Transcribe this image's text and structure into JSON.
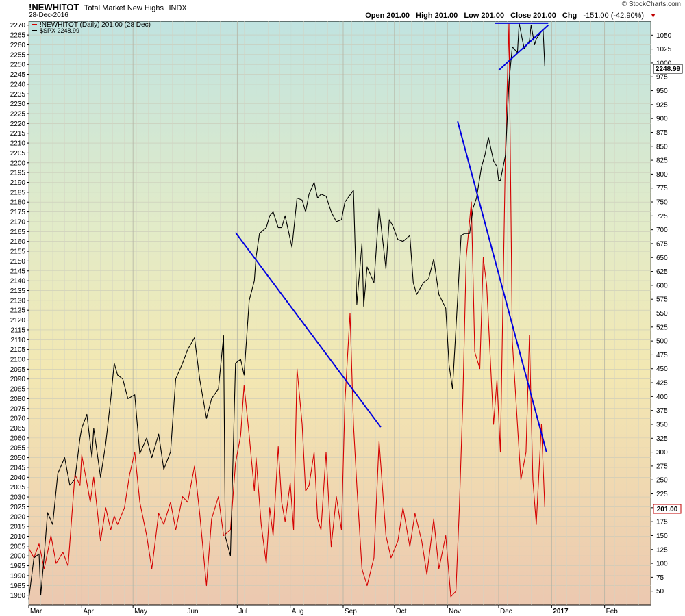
{
  "header": {
    "symbol": "!NEWHITOT",
    "description": "Total Market New Highs",
    "exchange": "INDX",
    "date": "28-Dec-2016",
    "watermark": "© StockCharts.com",
    "open_label": "Open",
    "open_value": "201.00",
    "high_label": "High",
    "high_value": "201.00",
    "low_label": "Low",
    "low_value": "201.00",
    "close_label": "Close",
    "close_value": "201.00",
    "chg_label": "Chg",
    "chg_value": "-151.00 (-42.90%)"
  },
  "legend": {
    "primary": "!NEWHITOT (Daily) 201.00 (28 Dec)",
    "secondary": "$SPX 2248.99"
  },
  "badges": {
    "spx_last": "2248.99",
    "newhi_last": "201.00"
  },
  "colors": {
    "newhi": "#d40000",
    "spx": "#000000",
    "trendline": "#0000e0",
    "badge": "#c00000"
  },
  "chart_data": {
    "type": "line",
    "x_labels": [
      "Mar",
      "Apr",
      "May",
      "Jun",
      "Jul",
      "Aug",
      "Sep",
      "Oct",
      "Nov",
      "Dec",
      "2017",
      "Feb"
    ],
    "x_range": [
      "2016-03-01",
      "2017-02-28"
    ],
    "left_axis": {
      "range": [
        1975,
        2272
      ],
      "ticks": [
        2270,
        2265,
        2260,
        2255,
        2250,
        2245,
        2240,
        2235,
        2230,
        2225,
        2220,
        2215,
        2210,
        2205,
        2200,
        2195,
        2190,
        2185,
        2180,
        2175,
        2170,
        2165,
        2160,
        2155,
        2150,
        2145,
        2140,
        2135,
        2130,
        2125,
        2120,
        2115,
        2110,
        2105,
        2100,
        2095,
        2090,
        2085,
        2080,
        2075,
        2070,
        2065,
        2060,
        2055,
        2050,
        2045,
        2040,
        2035,
        2030,
        2025,
        2020,
        2015,
        2010,
        2005,
        2000,
        1995,
        1990,
        1985,
        1980
      ]
    },
    "right_axis": {
      "range": [
        25,
        1075
      ],
      "ticks": [
        1050,
        1025,
        1000,
        975,
        950,
        925,
        900,
        875,
        850,
        825,
        800,
        775,
        750,
        725,
        700,
        675,
        650,
        625,
        600,
        575,
        550,
        525,
        500,
        475,
        450,
        425,
        400,
        375,
        350,
        325,
        300,
        275,
        250,
        225,
        200,
        175,
        150,
        125,
        100,
        75,
        50
      ]
    },
    "series": [
      {
        "name": "!NEWHITOT (Daily) 201.00 (28 Dec)",
        "axis": "right",
        "color": "#d40000",
        "points": [
          [
            "2016-03-01",
            127
          ],
          [
            "2016-03-04",
            110
          ],
          [
            "2016-03-07",
            135
          ],
          [
            "2016-03-10",
            90
          ],
          [
            "2016-03-14",
            150
          ],
          [
            "2016-03-17",
            100
          ],
          [
            "2016-03-21",
            120
          ],
          [
            "2016-03-24",
            95
          ],
          [
            "2016-03-28",
            260
          ],
          [
            "2016-03-31",
            240
          ],
          [
            "2016-04-01",
            295
          ],
          [
            "2016-04-04",
            245
          ],
          [
            "2016-04-06",
            210
          ],
          [
            "2016-04-08",
            255
          ],
          [
            "2016-04-12",
            140
          ],
          [
            "2016-04-15",
            200
          ],
          [
            "2016-04-18",
            160
          ],
          [
            "2016-04-20",
            185
          ],
          [
            "2016-04-22",
            170
          ],
          [
            "2016-04-26",
            200
          ],
          [
            "2016-04-29",
            260
          ],
          [
            "2016-05-02",
            300
          ],
          [
            "2016-05-05",
            210
          ],
          [
            "2016-05-09",
            150
          ],
          [
            "2016-05-12",
            90
          ],
          [
            "2016-05-16",
            190
          ],
          [
            "2016-05-19",
            170
          ],
          [
            "2016-05-23",
            210
          ],
          [
            "2016-05-26",
            160
          ],
          [
            "2016-05-30",
            220
          ],
          [
            "2016-06-02",
            210
          ],
          [
            "2016-06-06",
            275
          ],
          [
            "2016-06-09",
            190
          ],
          [
            "2016-06-13",
            60
          ],
          [
            "2016-06-16",
            180
          ],
          [
            "2016-06-20",
            220
          ],
          [
            "2016-06-23",
            150
          ],
          [
            "2016-06-27",
            160
          ],
          [
            "2016-06-30",
            280
          ],
          [
            "2016-07-03",
            330
          ],
          [
            "2016-07-05",
            420
          ],
          [
            "2016-07-08",
            330
          ],
          [
            "2016-07-11",
            230
          ],
          [
            "2016-07-12",
            290
          ],
          [
            "2016-07-15",
            170
          ],
          [
            "2016-07-18",
            100
          ],
          [
            "2016-07-20",
            200
          ],
          [
            "2016-07-22",
            150
          ],
          [
            "2016-07-25",
            310
          ],
          [
            "2016-07-27",
            210
          ],
          [
            "2016-07-29",
            175
          ],
          [
            "2016-08-01",
            245
          ],
          [
            "2016-08-03",
            160
          ],
          [
            "2016-08-05",
            450
          ],
          [
            "2016-08-08",
            350
          ],
          [
            "2016-08-10",
            230
          ],
          [
            "2016-08-12",
            240
          ],
          [
            "2016-08-15",
            300
          ],
          [
            "2016-08-17",
            180
          ],
          [
            "2016-08-19",
            160
          ],
          [
            "2016-08-22",
            300
          ],
          [
            "2016-08-25",
            130
          ],
          [
            "2016-08-28",
            220
          ],
          [
            "2016-08-31",
            160
          ],
          [
            "2016-09-02",
            390
          ],
          [
            "2016-09-05",
            550
          ],
          [
            "2016-09-07",
            350
          ],
          [
            "2016-09-09",
            240
          ],
          [
            "2016-09-12",
            90
          ],
          [
            "2016-09-15",
            60
          ],
          [
            "2016-09-19",
            110
          ],
          [
            "2016-09-22",
            320
          ],
          [
            "2016-09-26",
            150
          ],
          [
            "2016-09-29",
            110
          ],
          [
            "2016-10-03",
            140
          ],
          [
            "2016-10-06",
            200
          ],
          [
            "2016-10-10",
            130
          ],
          [
            "2016-10-13",
            190
          ],
          [
            "2016-10-17",
            140
          ],
          [
            "2016-10-20",
            80
          ],
          [
            "2016-10-24",
            180
          ],
          [
            "2016-10-27",
            90
          ],
          [
            "2016-10-31",
            150
          ],
          [
            "2016-11-03",
            40
          ],
          [
            "2016-11-06",
            50
          ],
          [
            "2016-11-08",
            200
          ],
          [
            "2016-11-10",
            390
          ],
          [
            "2016-11-12",
            650
          ],
          [
            "2016-11-15",
            750
          ],
          [
            "2016-11-17",
            480
          ],
          [
            "2016-11-20",
            450
          ],
          [
            "2016-11-22",
            650
          ],
          [
            "2016-11-24",
            600
          ],
          [
            "2016-11-28",
            350
          ],
          [
            "2016-11-30",
            430
          ],
          [
            "2016-12-02",
            300
          ],
          [
            "2016-12-05",
            850
          ],
          [
            "2016-12-07",
            1070
          ],
          [
            "2016-12-09",
            500
          ],
          [
            "2016-12-12",
            350
          ],
          [
            "2016-12-14",
            250
          ],
          [
            "2016-12-17",
            300
          ],
          [
            "2016-12-19",
            510
          ],
          [
            "2016-12-21",
            250
          ],
          [
            "2016-12-23",
            170
          ],
          [
            "2016-12-26",
            350
          ],
          [
            "2016-12-28",
            201
          ]
        ]
      },
      {
        "name": "$SPX 2248.99",
        "axis": "left",
        "color": "#000000",
        "points": [
          [
            "2016-03-01",
            1978
          ],
          [
            "2016-03-04",
            1999
          ],
          [
            "2016-03-07",
            2001
          ],
          [
            "2016-03-08",
            1980
          ],
          [
            "2016-03-10",
            2000
          ],
          [
            "2016-03-12",
            2022
          ],
          [
            "2016-03-15",
            2016
          ],
          [
            "2016-03-18",
            2042
          ],
          [
            "2016-03-22",
            2050
          ],
          [
            "2016-03-25",
            2036
          ],
          [
            "2016-03-28",
            2039
          ],
          [
            "2016-03-31",
            2060
          ],
          [
            "2016-04-01",
            2065
          ],
          [
            "2016-04-04",
            2072
          ],
          [
            "2016-04-07",
            2050
          ],
          [
            "2016-04-08",
            2065
          ],
          [
            "2016-04-12",
            2040
          ],
          [
            "2016-04-15",
            2057
          ],
          [
            "2016-04-18",
            2080
          ],
          [
            "2016-04-20",
            2098
          ],
          [
            "2016-04-22",
            2092
          ],
          [
            "2016-04-25",
            2090
          ],
          [
            "2016-04-28",
            2080
          ],
          [
            "2016-05-02",
            2082
          ],
          [
            "2016-05-05",
            2052
          ],
          [
            "2016-05-09",
            2060
          ],
          [
            "2016-05-12",
            2050
          ],
          [
            "2016-05-16",
            2062
          ],
          [
            "2016-05-19",
            2044
          ],
          [
            "2016-05-23",
            2053
          ],
          [
            "2016-05-26",
            2090
          ],
          [
            "2016-05-30",
            2098
          ],
          [
            "2016-06-02",
            2105
          ],
          [
            "2016-06-06",
            2111
          ],
          [
            "2016-06-09",
            2090
          ],
          [
            "2016-06-13",
            2070
          ],
          [
            "2016-06-16",
            2080
          ],
          [
            "2016-06-20",
            2085
          ],
          [
            "2016-06-23",
            2112
          ],
          [
            "2016-06-24",
            2010
          ],
          [
            "2016-06-27",
            2000
          ],
          [
            "2016-06-30",
            2098
          ],
          [
            "2016-07-03",
            2100
          ],
          [
            "2016-07-05",
            2092
          ],
          [
            "2016-07-08",
            2130
          ],
          [
            "2016-07-11",
            2140
          ],
          [
            "2016-07-12",
            2152
          ],
          [
            "2016-07-14",
            2164
          ],
          [
            "2016-07-18",
            2167
          ],
          [
            "2016-07-20",
            2173
          ],
          [
            "2016-07-22",
            2175
          ],
          [
            "2016-07-25",
            2167
          ],
          [
            "2016-07-27",
            2167
          ],
          [
            "2016-07-29",
            2173
          ],
          [
            "2016-08-02",
            2157
          ],
          [
            "2016-08-05",
            2182
          ],
          [
            "2016-08-08",
            2181
          ],
          [
            "2016-08-10",
            2175
          ],
          [
            "2016-08-12",
            2184
          ],
          [
            "2016-08-15",
            2190
          ],
          [
            "2016-08-17",
            2182
          ],
          [
            "2016-08-19",
            2184
          ],
          [
            "2016-08-22",
            2183
          ],
          [
            "2016-08-25",
            2175
          ],
          [
            "2016-08-28",
            2170
          ],
          [
            "2016-08-31",
            2171
          ],
          [
            "2016-09-02",
            2180
          ],
          [
            "2016-09-07",
            2186
          ],
          [
            "2016-09-09",
            2128
          ],
          [
            "2016-09-12",
            2159
          ],
          [
            "2016-09-13",
            2127
          ],
          [
            "2016-09-15",
            2147
          ],
          [
            "2016-09-19",
            2139
          ],
          [
            "2016-09-22",
            2177
          ],
          [
            "2016-09-26",
            2146
          ],
          [
            "2016-09-28",
            2171
          ],
          [
            "2016-09-30",
            2168
          ],
          [
            "2016-10-03",
            2161
          ],
          [
            "2016-10-06",
            2160
          ],
          [
            "2016-10-10",
            2163
          ],
          [
            "2016-10-12",
            2139
          ],
          [
            "2016-10-14",
            2133
          ],
          [
            "2016-10-18",
            2139
          ],
          [
            "2016-10-21",
            2141
          ],
          [
            "2016-10-24",
            2151
          ],
          [
            "2016-10-27",
            2133
          ],
          [
            "2016-10-31",
            2126
          ],
          [
            "2016-11-02",
            2097
          ],
          [
            "2016-11-04",
            2085
          ],
          [
            "2016-11-07",
            2131
          ],
          [
            "2016-11-09",
            2163
          ],
          [
            "2016-11-11",
            2164
          ],
          [
            "2016-11-14",
            2164
          ],
          [
            "2016-11-16",
            2177
          ],
          [
            "2016-11-18",
            2182
          ],
          [
            "2016-11-21",
            2198
          ],
          [
            "2016-11-23",
            2204
          ],
          [
            "2016-11-25",
            2213
          ],
          [
            "2016-11-28",
            2201
          ],
          [
            "2016-11-30",
            2198
          ],
          [
            "2016-12-01",
            2191
          ],
          [
            "2016-12-02",
            2191
          ],
          [
            "2016-12-05",
            2204
          ],
          [
            "2016-12-07",
            2241
          ],
          [
            "2016-12-09",
            2259
          ],
          [
            "2016-12-12",
            2256
          ],
          [
            "2016-12-13",
            2271
          ],
          [
            "2016-12-15",
            2262
          ],
          [
            "2016-12-16",
            2258
          ],
          [
            "2016-12-19",
            2262
          ],
          [
            "2016-12-20",
            2270
          ],
          [
            "2016-12-21",
            2265
          ],
          [
            "2016-12-22",
            2260
          ],
          [
            "2016-12-23",
            2263
          ],
          [
            "2016-12-27",
            2268
          ],
          [
            "2016-12-28",
            2249
          ]
        ]
      }
    ],
    "trendlines": [
      {
        "axis": "right",
        "from": [
          "2016-06-30",
          695
        ],
        "to": [
          "2016-09-23",
          345
        ]
      },
      {
        "axis": "right",
        "from": [
          "2016-11-07",
          895
        ],
        "to": [
          "2016-12-29",
          300
        ]
      },
      {
        "axis": "left",
        "from": [
          "2016-12-01",
          2247
        ],
        "to": [
          "2016-12-30",
          2270
        ]
      },
      {
        "axis": "left",
        "from": [
          "2016-11-29",
          2271
        ],
        "to": [
          "2016-12-30",
          2271
        ]
      }
    ],
    "grid": true,
    "background": "gradient teal (top) to yellow (middle) to peach (bottom)",
    "legend_position": "top-left"
  }
}
